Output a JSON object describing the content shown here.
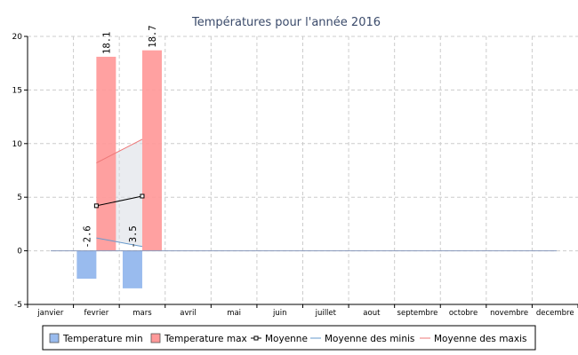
{
  "chart_data": {
    "type": "bar",
    "title": "Températures pour l'année 2016",
    "categories": [
      "janvier",
      "fevrier",
      "mars",
      "avril",
      "mai",
      "juin",
      "juillet",
      "aout",
      "septembre",
      "octobre",
      "novembre",
      "decembre"
    ],
    "ylim": [
      -5,
      20
    ],
    "yticks": [
      -5,
      0,
      5,
      10,
      15,
      20
    ],
    "grid": true,
    "legend_position": "bottom",
    "series": [
      {
        "name": "Temperature min",
        "kind": "bar",
        "color": "#99bbee",
        "values": [
          null,
          -2.6,
          -3.5,
          null,
          null,
          null,
          null,
          null,
          null,
          null,
          null,
          null
        ],
        "labels": [
          null,
          "-2.6",
          "-3.5",
          null,
          null,
          null,
          null,
          null,
          null,
          null,
          null,
          null
        ]
      },
      {
        "name": "Temperature max",
        "kind": "bar",
        "color": "#ff9999",
        "values": [
          null,
          18.1,
          18.7,
          null,
          null,
          null,
          null,
          null,
          null,
          null,
          null,
          null
        ],
        "labels": [
          null,
          "18.1",
          "18.7",
          null,
          null,
          null,
          null,
          null,
          null,
          null,
          null,
          null
        ]
      },
      {
        "name": "Moyenne",
        "kind": "line-marker",
        "color": "#000000",
        "values": [
          null,
          4.2,
          5.1,
          null,
          null,
          null,
          null,
          null,
          null,
          null,
          null,
          null
        ]
      },
      {
        "name": "Moyenne des minis",
        "kind": "line",
        "color": "#6699cc",
        "values": [
          null,
          1.2,
          0.4,
          null,
          null,
          null,
          null,
          null,
          null,
          null,
          null,
          null
        ]
      },
      {
        "name": "Moyenne des maxis",
        "kind": "line",
        "color": "#ee7777",
        "values": [
          null,
          8.2,
          10.4,
          null,
          null,
          null,
          null,
          null,
          null,
          null,
          null,
          null
        ]
      }
    ]
  }
}
